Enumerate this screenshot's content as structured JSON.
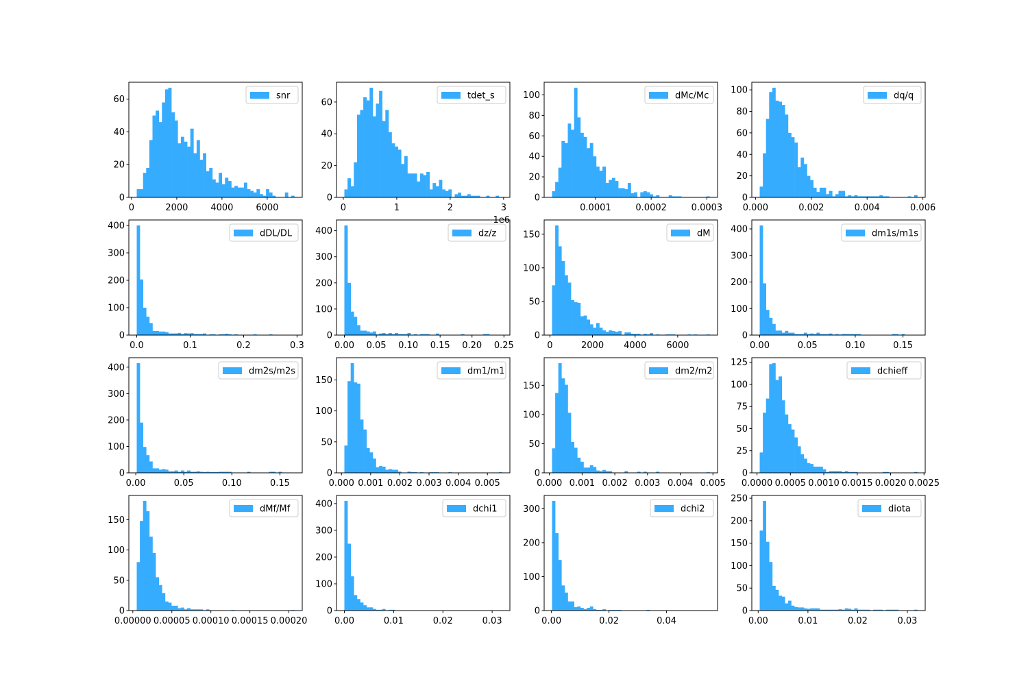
{
  "chart_data": [
    {
      "type": "bar",
      "histogram": true,
      "legend": "snr",
      "legend_placement": "top-right",
      "color": "#36acff",
      "range": [
        230,
        7200
      ],
      "xticks": [
        0,
        2000,
        4000,
        6000
      ],
      "xtick_labels": [
        "0",
        "2000",
        "4000",
        "6000"
      ],
      "yticks": [
        0,
        20,
        40,
        60
      ],
      "ytick_labels": [
        "0",
        "20",
        "40",
        "60"
      ],
      "counts": [
        5,
        5,
        15,
        18,
        35,
        50,
        53,
        46,
        58,
        66,
        67,
        52,
        47,
        33,
        37,
        34,
        31,
        42,
        27,
        35,
        23,
        27,
        16,
        18,
        11,
        9,
        15,
        8,
        12,
        10,
        6,
        7,
        6,
        6,
        9,
        5,
        4,
        3,
        5,
        2,
        1,
        5,
        3,
        1,
        0,
        0,
        0,
        3,
        0,
        1
      ]
    },
    {
      "type": "bar",
      "histogram": true,
      "legend": "tdet_s",
      "legend_placement": "top-right",
      "color": "#36acff",
      "range": [
        0.02,
        2.97
      ],
      "x_offset_label": "1e6",
      "xticks": [
        0,
        1,
        2,
        3
      ],
      "xtick_labels": [
        "0",
        "1",
        "2",
        "3"
      ],
      "yticks": [
        0,
        20,
        40,
        60
      ],
      "ytick_labels": [
        "0",
        "20",
        "40",
        "60"
      ],
      "counts": [
        5,
        12,
        7,
        22,
        52,
        55,
        63,
        61,
        69,
        51,
        59,
        67,
        48,
        55,
        41,
        34,
        32,
        30,
        21,
        26,
        15,
        15,
        15,
        10,
        15,
        14,
        16,
        5,
        9,
        7,
        11,
        5,
        4,
        5,
        0,
        2,
        3,
        1,
        1,
        2,
        1,
        1,
        1,
        0,
        0,
        1,
        0,
        0,
        1,
        0
      ]
    },
    {
      "type": "bar",
      "histogram": true,
      "legend": "dMc/Mc",
      "legend_placement": "top-right",
      "color": "#36acff",
      "range": [
        2.2e-05,
        0.000305
      ],
      "xticks": [
        0.0001,
        0.0002,
        0.0003
      ],
      "xtick_labels": [
        "0.0001",
        "0.0002",
        "0.0003"
      ],
      "yticks": [
        0,
        20,
        40,
        60,
        80,
        100
      ],
      "ytick_labels": [
        "0",
        "20",
        "40",
        "60",
        "80",
        "100"
      ],
      "counts": [
        6,
        15,
        29,
        55,
        53,
        72,
        66,
        107,
        78,
        63,
        59,
        48,
        53,
        40,
        30,
        26,
        30,
        14,
        17,
        19,
        16,
        9,
        9,
        8,
        14,
        4,
        5,
        0,
        5,
        6,
        5,
        3,
        1,
        2,
        0,
        0,
        0,
        2,
        1,
        1,
        1,
        0,
        0,
        0,
        0,
        0,
        0,
        0,
        0,
        1
      ]
    },
    {
      "type": "bar",
      "histogram": true,
      "legend": "dq/q",
      "legend_placement": "top-right",
      "color": "#36acff",
      "range": [
        0.00015,
        0.0058
      ],
      "xticks": [
        0,
        0.002,
        0.004,
        0.006
      ],
      "xtick_labels": [
        "0.000",
        "0.002",
        "0.004",
        "0.006"
      ],
      "yticks": [
        0,
        20,
        40,
        60,
        80,
        100
      ],
      "ytick_labels": [
        "0",
        "20",
        "40",
        "60",
        "80",
        "100"
      ],
      "counts": [
        10,
        41,
        73,
        98,
        102,
        90,
        89,
        86,
        77,
        60,
        56,
        51,
        28,
        37,
        31,
        20,
        16,
        9,
        5,
        9,
        9,
        3,
        6,
        1,
        3,
        6,
        6,
        1,
        2,
        1,
        2,
        1,
        1,
        1,
        1,
        1,
        1,
        1,
        2,
        1,
        1,
        0,
        0,
        0,
        0,
        0,
        0,
        1,
        0,
        2
      ]
    },
    {
      "type": "bar",
      "histogram": true,
      "legend": "dDL/DL",
      "legend_placement": "top-right",
      "color": "#36acff",
      "range": [
        0,
        0.295
      ],
      "xticks": [
        0,
        0.1,
        0.2,
        0.3
      ],
      "xtick_labels": [
        "0.0",
        "0.1",
        "0.2",
        "0.3"
      ],
      "yticks": [
        0,
        100,
        200,
        300,
        400
      ],
      "ytick_labels": [
        "0",
        "100",
        "200",
        "300",
        "400"
      ],
      "counts": [
        400,
        203,
        100,
        67,
        44,
        15,
        15,
        13,
        13,
        11,
        6,
        6,
        6,
        8,
        4,
        7,
        6,
        7,
        4,
        4,
        4,
        6,
        1,
        3,
        3,
        1,
        3,
        3,
        5,
        3,
        1,
        3,
        0,
        0,
        0,
        0,
        0,
        3,
        0,
        0,
        0,
        0,
        3,
        0,
        0,
        0,
        0,
        0,
        0,
        1
      ]
    },
    {
      "type": "bar",
      "histogram": true,
      "legend": "dz/z",
      "legend_placement": "top-right",
      "color": "#36acff",
      "range": [
        0,
        0.247
      ],
      "xticks": [
        0,
        0.05,
        0.1,
        0.15,
        0.2,
        0.25
      ],
      "xtick_labels": [
        "0.00",
        "0.05",
        "0.10",
        "0.15",
        "0.20",
        "0.25"
      ],
      "yticks": [
        0,
        100,
        200,
        300,
        400
      ],
      "ytick_labels": [
        "0",
        "100",
        "200",
        "300",
        "400"
      ],
      "counts": [
        420,
        200,
        90,
        70,
        38,
        17,
        17,
        14,
        10,
        14,
        3,
        6,
        8,
        4,
        8,
        4,
        8,
        4,
        4,
        4,
        8,
        1,
        4,
        1,
        4,
        4,
        4,
        1,
        1,
        6,
        0,
        0,
        0,
        0,
        0,
        0,
        0,
        4,
        0,
        0,
        0,
        0,
        0,
        0,
        4,
        4,
        0,
        0,
        0,
        1
      ]
    },
    {
      "type": "bar",
      "histogram": true,
      "legend": "dM",
      "legend_placement": "top-right",
      "color": "#36acff",
      "range": [
        100,
        7500
      ],
      "xticks": [
        0,
        2000,
        4000,
        6000
      ],
      "xtick_labels": [
        "0",
        "2000",
        "4000",
        "6000"
      ],
      "yticks": [
        0,
        50,
        100,
        150
      ],
      "ytick_labels": [
        "0",
        "50",
        "100",
        "150"
      ],
      "counts": [
        74,
        163,
        132,
        110,
        89,
        78,
        52,
        49,
        48,
        28,
        29,
        23,
        16,
        11,
        18,
        11,
        7,
        5,
        7,
        6,
        5,
        6,
        0,
        4,
        4,
        2,
        2,
        2,
        0,
        2,
        1,
        3,
        0,
        1,
        0,
        0,
        1,
        1,
        1,
        0,
        0,
        0,
        0,
        1,
        0,
        1,
        0,
        0,
        0,
        1
      ]
    },
    {
      "type": "bar",
      "histogram": true,
      "legend": "dm1s/m1s",
      "legend_placement": "top-right",
      "color": "#36acff",
      "range": [
        0,
        0.165
      ],
      "xticks": [
        0,
        0.05,
        0.1,
        0.15
      ],
      "xtick_labels": [
        "0.00",
        "0.05",
        "0.10",
        "0.15"
      ],
      "yticks": [
        0,
        100,
        200,
        300,
        400
      ],
      "ytick_labels": [
        "0",
        "100",
        "200",
        "300",
        "400"
      ],
      "counts": [
        413,
        195,
        95,
        65,
        42,
        17,
        17,
        9,
        16,
        9,
        9,
        4,
        4,
        4,
        9,
        4,
        6,
        4,
        9,
        4,
        4,
        4,
        6,
        2,
        4,
        2,
        4,
        4,
        4,
        4,
        4,
        4,
        0,
        0,
        0,
        0,
        0,
        0,
        0,
        0,
        0,
        0,
        4,
        4,
        0,
        4,
        0,
        0,
        0,
        0
      ]
    },
    {
      "type": "bar",
      "histogram": true,
      "legend": "dm2s/m2s",
      "legend_placement": "top-right",
      "color": "#36acff",
      "range": [
        0.001,
        0.165
      ],
      "xticks": [
        0,
        0.05,
        0.1,
        0.15
      ],
      "xtick_labels": [
        "0.00",
        "0.05",
        "0.10",
        "0.15"
      ],
      "yticks": [
        0,
        100,
        200,
        300,
        400
      ],
      "ytick_labels": [
        "0",
        "100",
        "200",
        "300",
        "400"
      ],
      "counts": [
        415,
        190,
        98,
        67,
        43,
        17,
        17,
        12,
        14,
        12,
        6,
        6,
        9,
        4,
        9,
        4,
        9,
        4,
        4,
        6,
        4,
        3,
        4,
        3,
        3,
        3,
        4,
        4,
        4,
        4,
        0,
        0,
        0,
        0,
        0,
        4,
        0,
        0,
        0,
        0,
        0,
        0,
        4,
        4,
        0,
        4,
        0,
        0,
        0,
        0
      ]
    },
    {
      "type": "bar",
      "histogram": true,
      "legend": "dm1/m1",
      "legend_placement": "top-right",
      "color": "#36acff",
      "range": [
        0.0001,
        0.0055
      ],
      "xticks": [
        0,
        0.001,
        0.002,
        0.003,
        0.004,
        0.005
      ],
      "xtick_labels": [
        "0.000",
        "0.001",
        "0.002",
        "0.003",
        "0.004",
        "0.005"
      ],
      "yticks": [
        0,
        50,
        100,
        150
      ],
      "ytick_labels": [
        "0",
        "50",
        "100",
        "150"
      ],
      "counts": [
        44,
        148,
        177,
        146,
        144,
        86,
        70,
        40,
        33,
        23,
        9,
        11,
        10,
        5,
        6,
        5,
        5,
        2,
        0,
        0,
        2,
        1,
        1,
        0,
        1,
        0,
        0,
        1,
        1,
        1,
        0,
        0,
        0,
        1,
        0,
        0,
        0,
        0,
        0,
        0,
        0,
        0,
        0,
        0,
        0,
        0,
        0,
        0,
        0,
        1
      ]
    },
    {
      "type": "bar",
      "histogram": true,
      "legend": "dm2/m2",
      "legend_placement": "top-right",
      "color": "#36acff",
      "range": [
        8e-05,
        0.0049
      ],
      "xticks": [
        0,
        0.001,
        0.002,
        0.003,
        0.004,
        0.005
      ],
      "xtick_labels": [
        "0.000",
        "0.001",
        "0.002",
        "0.003",
        "0.004",
        "0.005"
      ],
      "yticks": [
        0,
        50,
        100,
        150
      ],
      "ytick_labels": [
        "0",
        "50",
        "100",
        "150"
      ],
      "counts": [
        42,
        137,
        188,
        162,
        151,
        103,
        53,
        43,
        26,
        19,
        9,
        9,
        13,
        10,
        4,
        3,
        5,
        3,
        3,
        0,
        0,
        0,
        0,
        3,
        0,
        0,
        0,
        2,
        0,
        2,
        0,
        0,
        0,
        2,
        0,
        0,
        0,
        0,
        0,
        0,
        0,
        0,
        0,
        0,
        0,
        0,
        0,
        0,
        0,
        1
      ]
    },
    {
      "type": "bar",
      "histogram": true,
      "legend": "dchieff",
      "legend_placement": "top-right",
      "color": "#36acff",
      "range": [
        4e-05,
        0.0024
      ],
      "xticks": [
        0,
        0.0005,
        0.001,
        0.0015,
        0.002,
        0.0025
      ],
      "xtick_labels": [
        "0.0000",
        "0.0005",
        "0.0010",
        "0.0015",
        "0.0020",
        "0.0025"
      ],
      "yticks": [
        0,
        25,
        50,
        75,
        100,
        125
      ],
      "ytick_labels": [
        "0",
        "25",
        "50",
        "75",
        "100",
        "125"
      ],
      "counts": [
        23,
        68,
        84,
        123,
        124,
        105,
        109,
        82,
        66,
        55,
        49,
        40,
        30,
        21,
        16,
        11,
        10,
        7,
        7,
        7,
        4,
        1,
        2,
        2,
        2,
        2,
        1,
        2,
        1,
        1,
        1,
        0,
        0,
        0,
        0,
        0,
        0,
        0,
        0,
        1,
        1,
        0,
        0,
        0,
        0,
        0,
        0,
        0,
        0,
        1
      ]
    },
    {
      "type": "bar",
      "histogram": true,
      "legend": "dMf/Mf",
      "legend_placement": "top-right",
      "color": "#36acff",
      "range": [
        5e-06,
        0.000207
      ],
      "xticks": [
        0,
        5e-05,
        0.0001,
        0.00015,
        0.0002
      ],
      "xtick_labels": [
        "0.00000",
        "0.00005",
        "0.00010",
        "0.00015",
        "0.00020"
      ],
      "yticks": [
        0,
        50,
        100,
        150
      ],
      "ytick_labels": [
        "0",
        "50",
        "100",
        "150"
      ],
      "counts": [
        80,
        148,
        181,
        164,
        122,
        95,
        55,
        42,
        29,
        15,
        13,
        8,
        8,
        4,
        5,
        2,
        4,
        2,
        2,
        2,
        2,
        0,
        2,
        0,
        0,
        0,
        0,
        0,
        0,
        0,
        1,
        0,
        0,
        0,
        0,
        0,
        0,
        0,
        0,
        0,
        0,
        0,
        0,
        0,
        0,
        0,
        0,
        0,
        0,
        1
      ]
    },
    {
      "type": "bar",
      "histogram": true,
      "legend": "dchi1",
      "legend_placement": "top-right",
      "color": "#36acff",
      "range": [
        0,
        0.032
      ],
      "xticks": [
        0,
        0.01,
        0.02,
        0.03
      ],
      "xtick_labels": [
        "0.00",
        "0.01",
        "0.02",
        "0.03"
      ],
      "yticks": [
        0,
        100,
        200,
        300,
        400
      ],
      "ytick_labels": [
        "0",
        "100",
        "200",
        "300",
        "400"
      ],
      "counts": [
        410,
        250,
        128,
        58,
        43,
        30,
        20,
        12,
        12,
        6,
        3,
        3,
        6,
        0,
        3,
        3,
        0,
        0,
        0,
        0,
        0,
        0,
        0,
        0,
        0,
        0,
        0,
        0,
        0,
        0,
        0,
        0,
        0,
        0,
        0,
        0,
        0,
        0,
        0,
        0,
        0,
        0,
        0,
        0,
        0,
        0,
        0,
        0,
        0,
        1
      ]
    },
    {
      "type": "bar",
      "histogram": true,
      "legend": "dchi2",
      "legend_placement": "top-right",
      "color": "#36acff",
      "range": [
        0.0002,
        0.055
      ],
      "xticks": [
        0,
        0.02,
        0.04
      ],
      "xtick_labels": [
        "0.00",
        "0.02",
        "0.04"
      ],
      "yticks": [
        0,
        100,
        200,
        300
      ],
      "ytick_labels": [
        "0",
        "100",
        "200",
        "300"
      ],
      "counts": [
        323,
        228,
        149,
        74,
        53,
        27,
        27,
        10,
        12,
        8,
        4,
        8,
        12,
        4,
        2,
        2,
        4,
        0,
        2,
        2,
        2,
        2,
        0,
        0,
        0,
        0,
        0,
        0,
        0,
        0,
        2,
        0,
        0,
        0,
        0,
        0,
        0,
        0,
        0,
        0,
        0,
        0,
        0,
        0,
        0,
        0,
        0,
        0,
        0,
        1
      ]
    },
    {
      "type": "bar",
      "histogram": true,
      "legend": "diota",
      "legend_placement": "top-right",
      "color": "#36acff",
      "range": [
        0.0003,
        0.032
      ],
      "xticks": [
        0,
        0.01,
        0.02,
        0.03
      ],
      "xtick_labels": [
        "0.00",
        "0.01",
        "0.02",
        "0.03"
      ],
      "yticks": [
        0,
        50,
        100,
        150,
        200,
        250
      ],
      "ytick_labels": [
        "0",
        "50",
        "100",
        "150",
        "200",
        "250"
      ],
      "counts": [
        178,
        244,
        153,
        108,
        55,
        46,
        33,
        31,
        16,
        22,
        11,
        8,
        7,
        7,
        5,
        4,
        5,
        5,
        5,
        2,
        2,
        2,
        2,
        2,
        2,
        3,
        2,
        5,
        4,
        2,
        5,
        2,
        2,
        2,
        2,
        0,
        2,
        2,
        2,
        0,
        2,
        2,
        2,
        2,
        0,
        0,
        0,
        0,
        0,
        2
      ]
    }
  ]
}
